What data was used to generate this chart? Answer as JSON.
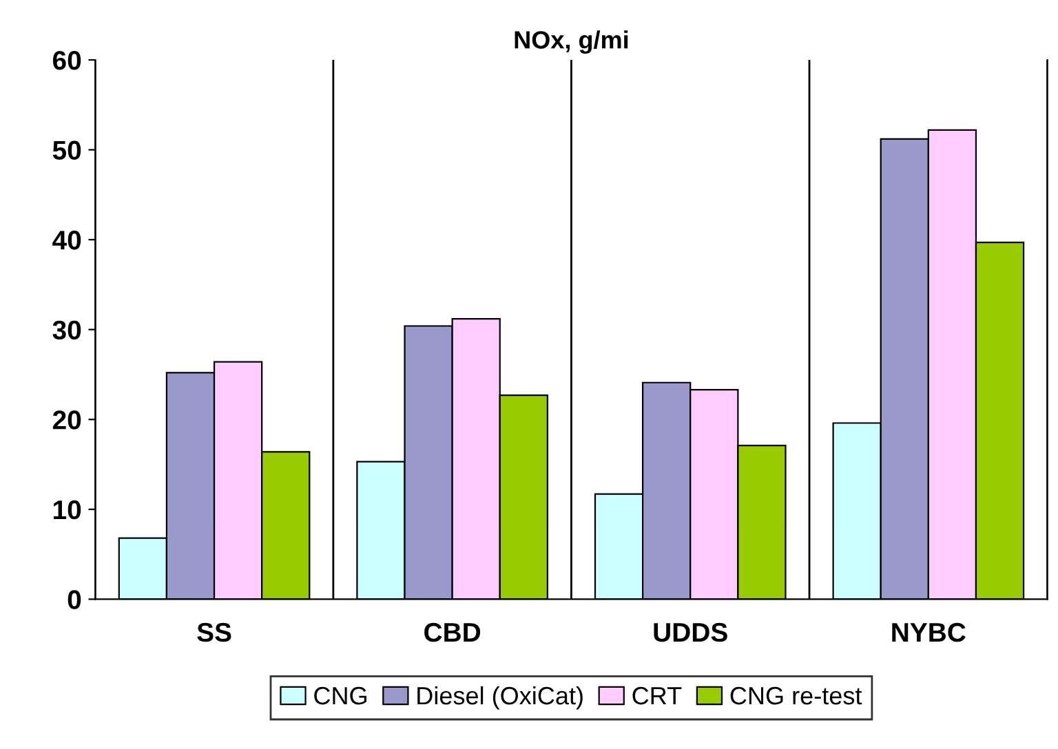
{
  "chart_data": {
    "type": "bar",
    "title": "NOx, g/mi",
    "categories": [
      "SS",
      "CBD",
      "UDDS",
      "NYBC"
    ],
    "series": [
      {
        "name": "CNG",
        "color": "#ccffff",
        "values": [
          6.8,
          15.3,
          11.7,
          19.6
        ]
      },
      {
        "name": "Diesel (OxiCat)",
        "color": "#9999cc",
        "values": [
          25.2,
          30.4,
          24.1,
          51.2
        ]
      },
      {
        "name": "CRT",
        "color": "#ffccff",
        "values": [
          26.4,
          31.2,
          23.3,
          52.2
        ]
      },
      {
        "name": "CNG re-test",
        "color": "#99cc00",
        "values": [
          16.4,
          22.7,
          17.1,
          39.7
        ]
      }
    ],
    "ylim": [
      0,
      60
    ],
    "yticks": [
      0,
      10,
      20,
      30,
      40,
      50,
      60
    ],
    "grid": "x",
    "legend": "bottom"
  }
}
